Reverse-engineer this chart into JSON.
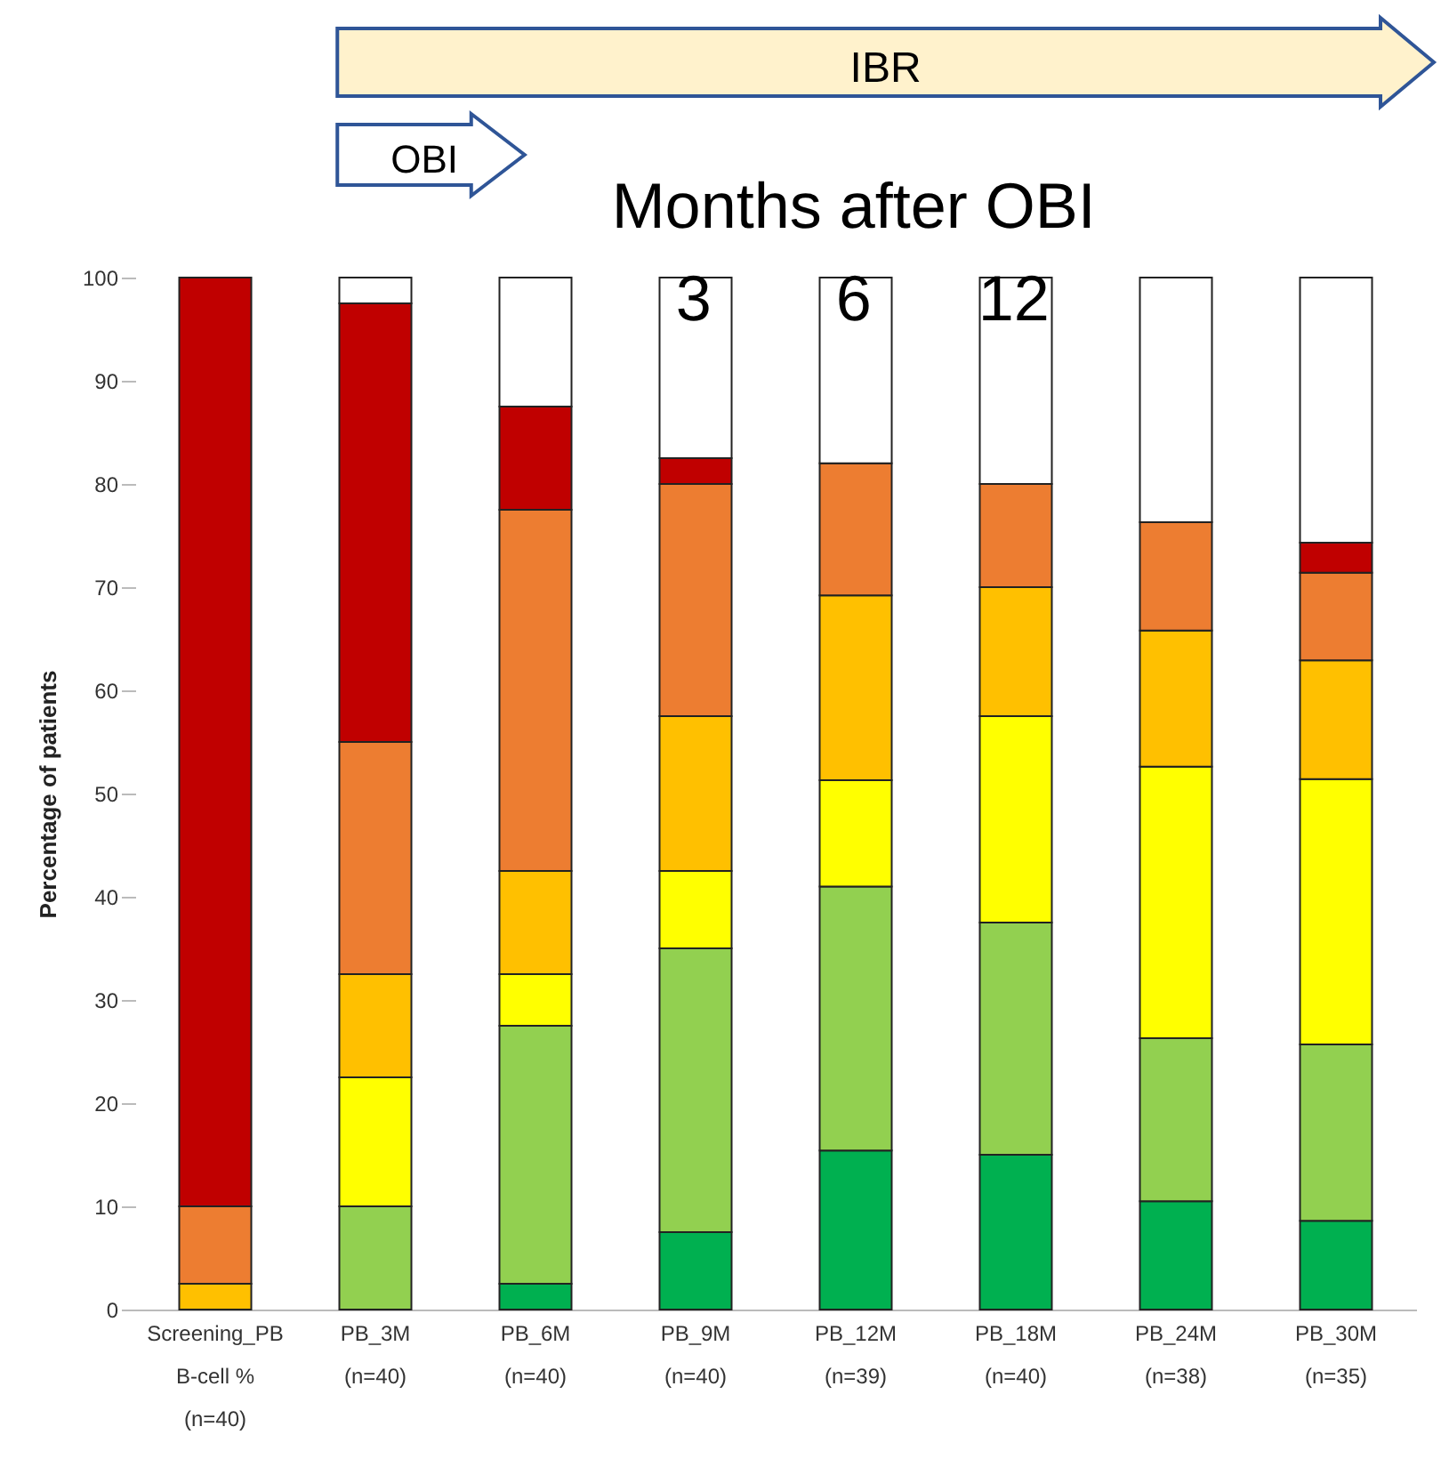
{
  "chart_data": {
    "type": "bar",
    "stacked": true,
    "ylabel": "Percentage of patients",
    "categories": [
      "Screening_PB\nB-cell %\n(n=40)",
      "PB_3M\n(n=40)",
      "PB_6M\n(n=40)",
      "PB_9M\n(n=40)",
      "PB_12M\n(n=39)",
      "PB_18M\n(n=40)",
      "PB_24M\n(n=38)",
      "PB_30M\n(n=35)"
    ],
    "series": [
      {
        "color": "#00b050",
        "values": [
          0,
          0,
          2.5,
          7.5,
          15.4,
          15,
          10.5,
          8.6
        ]
      },
      {
        "color": "#92d050",
        "values": [
          0,
          10,
          25,
          27.5,
          25.6,
          22.5,
          15.8,
          17.1
        ]
      },
      {
        "color": "#ffff00",
        "values": [
          0,
          12.5,
          5,
          7.5,
          10.3,
          20,
          26.3,
          25.7
        ]
      },
      {
        "color": "#ffc000",
        "values": [
          2.5,
          10,
          10,
          15,
          17.9,
          12.5,
          13.2,
          11.5
        ]
      },
      {
        "color": "#ed7d31",
        "values": [
          7.5,
          22.5,
          35,
          22.5,
          12.8,
          10,
          10.5,
          8.5
        ]
      },
      {
        "color": "#c00000",
        "values": [
          90,
          42.5,
          10,
          2.5,
          0,
          0,
          0,
          2.9
        ]
      },
      {
        "color": "#ffffff",
        "values": [
          0,
          2.5,
          12.5,
          17.5,
          18,
          20,
          23.7,
          25.7
        ]
      }
    ],
    "ylim": [
      0,
      100
    ],
    "yticks": [
      0,
      10,
      20,
      30,
      40,
      50,
      60,
      70,
      80,
      90,
      100
    ],
    "grid": false,
    "legend": false,
    "annotations": [
      "IBR",
      "OBI",
      "Months after OBI",
      "3",
      "6",
      "12"
    ]
  }
}
